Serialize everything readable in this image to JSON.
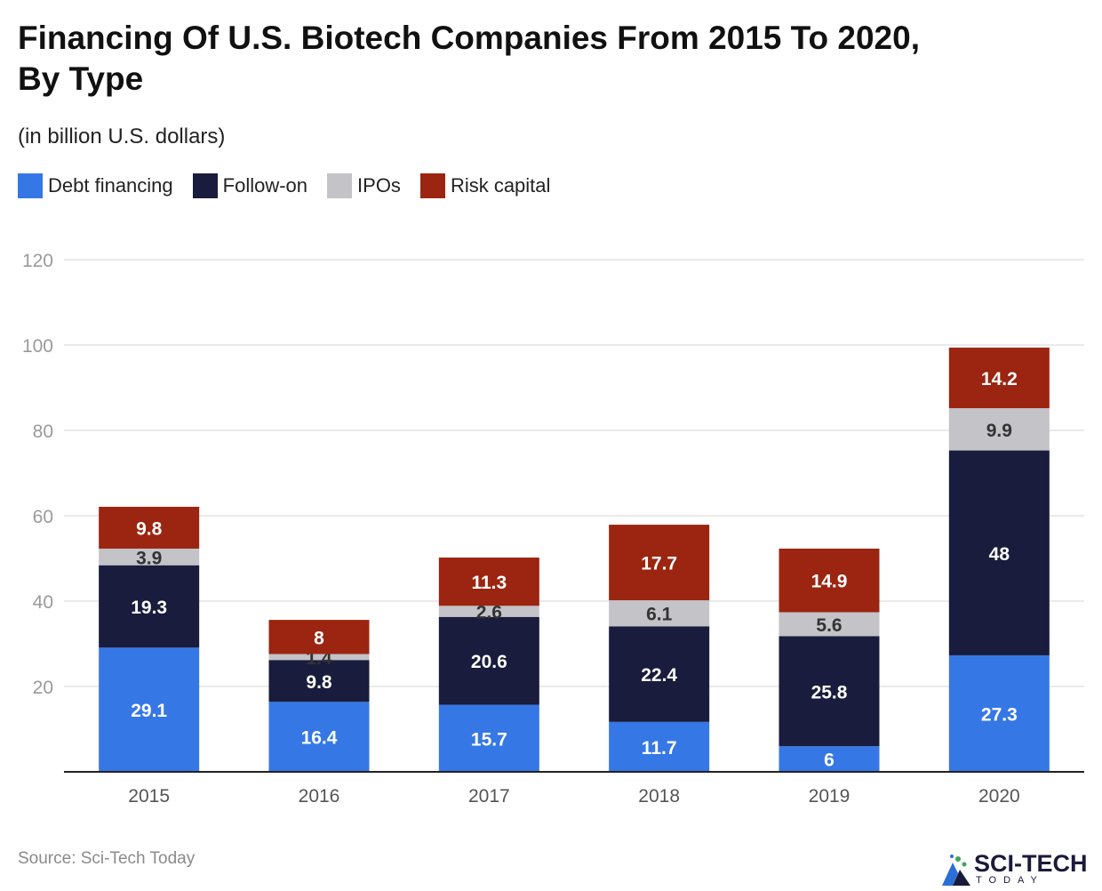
{
  "header": {
    "title_line1": "Financing Of U.S. Biotech Companies From 2015 To 2020,",
    "title_line2": "By Type",
    "subtitle": "(in billion U.S. dollars)"
  },
  "legend": [
    {
      "label": "Debt financing",
      "color": "#3677e6"
    },
    {
      "label": "Follow-on",
      "color": "#191c3c"
    },
    {
      "label": "IPOs",
      "color": "#c3c3c8"
    },
    {
      "label": "Risk capital",
      "color": "#9b2510"
    }
  ],
  "footer": {
    "source": "Source: Sci-Tech Today",
    "logo_text": "SCI-TECH",
    "logo_sub": "TODAY"
  },
  "chart_data": {
    "type": "bar",
    "stacked": true,
    "title": "Financing Of U.S. Biotech Companies From 2015 To 2020, By Type",
    "subtitle": "(in billion U.S. dollars)",
    "xlabel": "",
    "ylabel": "",
    "ylim": [
      0,
      120
    ],
    "yticks": [
      20,
      40,
      60,
      80,
      100,
      120
    ],
    "grid": true,
    "legend_position": "top-left",
    "categories": [
      "2015",
      "2016",
      "2017",
      "2018",
      "2019",
      "2020"
    ],
    "series": [
      {
        "name": "Debt financing",
        "color": "#3677e6",
        "label_color": "#ffffff",
        "values": [
          29.1,
          16.4,
          15.7,
          11.7,
          6,
          27.3
        ]
      },
      {
        "name": "Follow-on",
        "color": "#191c3c",
        "label_color": "#ffffff",
        "values": [
          19.3,
          9.8,
          20.6,
          22.4,
          25.8,
          48
        ]
      },
      {
        "name": "IPOs",
        "color": "#c3c3c8",
        "label_color": "#333333",
        "values": [
          3.9,
          1.4,
          2.6,
          6.1,
          5.6,
          9.9
        ]
      },
      {
        "name": "Risk capital",
        "color": "#9b2510",
        "label_color": "#ffffff",
        "values": [
          9.8,
          8,
          11.3,
          17.7,
          14.9,
          14.2
        ]
      }
    ]
  }
}
